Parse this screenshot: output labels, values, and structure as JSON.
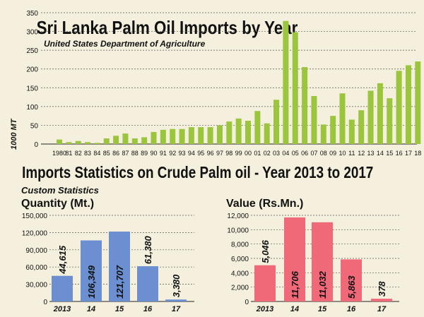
{
  "chart_data": [
    {
      "type": "bar",
      "title": "Sri Lanka Palm Oil Imports by Year",
      "subtitle": "United States Department of Agriculture",
      "ylabel": "1000 MT",
      "xlabel": "",
      "ylim": [
        0,
        350
      ],
      "yticks": [
        0,
        50,
        100,
        150,
        200,
        250,
        300,
        350
      ],
      "grid": true,
      "color": "#9bc53d",
      "categories": [
        "1980",
        "81",
        "82",
        "83",
        "84",
        "85",
        "86",
        "87",
        "88",
        "89",
        "90",
        "91",
        "92",
        "93",
        "94",
        "95",
        "96",
        "97",
        "98",
        "99",
        "00",
        "01",
        "02",
        "03",
        "04",
        "05",
        "06",
        "07",
        "08",
        "09",
        "10",
        "11",
        "12",
        "13",
        "14",
        "15",
        "16",
        "17",
        "18"
      ],
      "values": [
        12,
        5,
        8,
        5,
        3,
        15,
        22,
        28,
        15,
        18,
        32,
        38,
        40,
        40,
        45,
        45,
        45,
        50,
        60,
        68,
        62,
        88,
        55,
        118,
        328,
        298,
        205,
        128,
        52,
        75,
        135,
        65,
        90,
        142,
        162,
        122,
        195,
        210,
        220
      ]
    },
    {
      "type": "bar",
      "title": "Imports Statistics on Crude Palm oil - Year 2013 to 2017",
      "subtitle": "Custom Statistics",
      "ylabel": "Quantity (Mt.)",
      "ylim": [
        0,
        150000
      ],
      "yticks": [
        "0",
        "30,000",
        "60,000",
        "90,000",
        "120,000",
        "150,000"
      ],
      "grid": true,
      "color": "#6b8fd1",
      "categories": [
        "2013",
        "14",
        "15",
        "16",
        "17"
      ],
      "values": [
        44615,
        106349,
        121707,
        61380,
        3380
      ],
      "data_labels": [
        "44,615",
        "106,349",
        "121,707",
        "61,380",
        "3,380"
      ]
    },
    {
      "type": "bar",
      "title": "",
      "ylabel": "Value (Rs.Mn.)",
      "ylim": [
        0,
        12000
      ],
      "yticks": [
        "0",
        "2,000",
        "4,000",
        "6,000",
        "8,000",
        "10,000",
        "12,000"
      ],
      "grid": true,
      "color": "#f06978",
      "categories": [
        "2013",
        "14",
        "15",
        "16",
        "17"
      ],
      "values": [
        5046,
        11706,
        11032,
        5863,
        378
      ],
      "data_labels": [
        "5,046",
        "11,706",
        "11,032",
        "5,863",
        "378"
      ]
    }
  ]
}
